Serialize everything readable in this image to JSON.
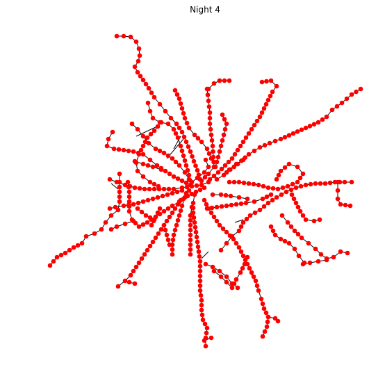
{
  "title": "Night 4",
  "colors": {
    "node": "#ff0000",
    "edge": "#000000",
    "background": "#ffffff"
  },
  "diagram": {
    "type": "network-graph",
    "node_shape": "circle",
    "axes_visible": false
  }
}
